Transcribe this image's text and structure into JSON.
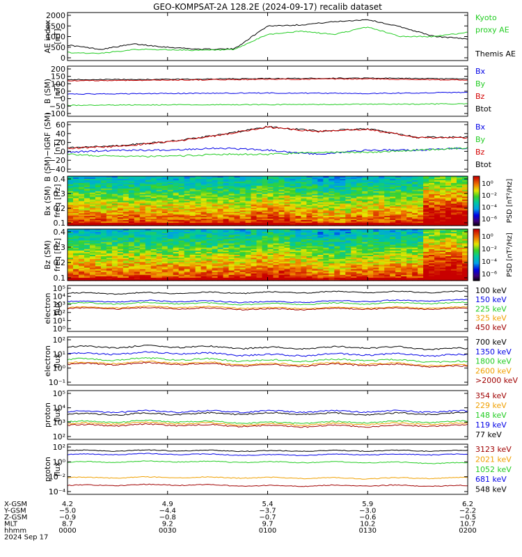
{
  "title": "GEO-KOMPSAT-2A 128.2E (2024-09-17) recalib dataset",
  "colors": {
    "black": "#000000",
    "red": "#d40000",
    "green": "#22cc22",
    "blue": "#0000e6",
    "orange": "#f0a000",
    "darkred": "#a00000"
  },
  "panels": [
    {
      "id": "ae",
      "ylabel": [
        "AE index",
        "[nT]"
      ],
      "ticks": [
        "2000",
        "1500",
        "1000",
        "500",
        "0"
      ],
      "legend": [
        {
          "text": "Kyoto",
          "color": "#22cc22"
        },
        {
          "text": "proxy AE",
          "color": "#22cc22"
        },
        {
          "text": "",
          "color": "#000000"
        },
        {
          "text": "Themis AE",
          "color": "#000000"
        }
      ]
    },
    {
      "id": "b",
      "ylabel": [
        "B (SM)",
        "[nT]"
      ],
      "ticks": [
        "200",
        "150",
        "100",
        "50",
        "0",
        "−50",
        "−100"
      ],
      "legend": [
        {
          "text": "Bx",
          "color": "#0000e6"
        },
        {
          "text": "By",
          "color": "#22cc22"
        },
        {
          "text": "Bz",
          "color": "#d40000"
        },
        {
          "text": "Btot",
          "color": "#000000"
        }
      ]
    },
    {
      "id": "db",
      "ylabel": [
        "B (SM)−IGRF (SM)",
        "[nT]"
      ],
      "ticks": [
        "60",
        "40",
        "20",
        "0",
        "−20",
        "−40"
      ],
      "legend": [
        {
          "text": "Bx",
          "color": "#0000e6"
        },
        {
          "text": "By",
          "color": "#22cc22"
        },
        {
          "text": "Bz",
          "color": "#d40000"
        },
        {
          "text": "Btot",
          "color": "#000000"
        }
      ]
    },
    {
      "id": "bxspec",
      "ylabel": [
        "Bx (SM)",
        "freq [Hz]"
      ],
      "ticks": [
        "0.4",
        "0.3",
        "0.2",
        "0.1"
      ],
      "colorbar": {
        "label": "PSD [nT²/Hz]",
        "ticks": [
          "10⁰",
          "10⁻²",
          "10⁻⁴",
          "10⁻⁶"
        ]
      }
    },
    {
      "id": "bzspec",
      "ylabel": [
        "Bz (SM)",
        "freq [Hz]"
      ],
      "ticks": [
        "0.4",
        "0.3",
        "0.2",
        "0.1"
      ],
      "colorbar": {
        "label": "PSD [nT²/Hz]",
        "ticks": [
          "10⁰",
          "10⁻²",
          "10⁻⁴",
          "10⁻⁶"
        ]
      }
    },
    {
      "id": "elow",
      "ylabel": [
        "electron",
        "flux"
      ],
      "ticks": [
        "10⁵",
        "10⁴",
        "10³",
        "10²",
        "10¹",
        "10⁰"
      ],
      "legend": [
        {
          "text": "100 keV",
          "color": "#000000"
        },
        {
          "text": "150 keV",
          "color": "#0000e6"
        },
        {
          "text": "225 keV",
          "color": "#22cc22"
        },
        {
          "text": "325 keV",
          "color": "#f0a000"
        },
        {
          "text": "450 keV",
          "color": "#a00000"
        }
      ]
    },
    {
      "id": "ehigh",
      "ylabel": [
        "electron",
        "flux"
      ],
      "ticks": [
        "10²",
        "10¹",
        "10⁰",
        "10⁻¹"
      ],
      "legend": [
        {
          "text": "700 keV",
          "color": "#000000"
        },
        {
          "text": "1350 keV",
          "color": "#0000e6"
        },
        {
          "text": "1800 keV",
          "color": "#22cc22"
        },
        {
          "text": "2600 keV",
          "color": "#f0a000"
        },
        {
          "text": ">2000 keV",
          "color": "#a00000"
        }
      ]
    },
    {
      "id": "plow",
      "ylabel": [
        "proton",
        "flux"
      ],
      "ticks": [
        "10⁵",
        "10⁴",
        "10³",
        "10²"
      ],
      "legend": [
        {
          "text": "354 keV",
          "color": "#a00000"
        },
        {
          "text": "229 keV",
          "color": "#f0a000"
        },
        {
          "text": "148 keV",
          "color": "#22cc22"
        },
        {
          "text": "119 keV",
          "color": "#0000e6"
        },
        {
          "text": "77 keV",
          "color": "#000000"
        }
      ]
    },
    {
      "id": "phigh",
      "ylabel": [
        "proton",
        "flux"
      ],
      "ticks": [
        "10²",
        "10⁰",
        "10⁻²",
        "10⁻⁴"
      ],
      "legend": [
        {
          "text": "3123 keV",
          "color": "#a00000"
        },
        {
          "text": "2021 keV",
          "color": "#f0a000"
        },
        {
          "text": "1052 keV",
          "color": "#22cc22"
        },
        {
          "text": "681 keV",
          "color": "#0000e6"
        },
        {
          "text": "548 keV",
          "color": "#000000"
        }
      ]
    }
  ],
  "xaxis": {
    "row_labels": [
      "X-GSM",
      "Y-GSM",
      "Z-GSM",
      "MLT",
      "hhmm"
    ],
    "columns": [
      [
        "4.2",
        "−5.0",
        "−0.9",
        "8.7",
        "0000"
      ],
      [
        "4.9",
        "−4.4",
        "−0.8",
        "9.2",
        "0030"
      ],
      [
        "5.4",
        "−3.7",
        "−0.7",
        "9.7",
        "0100"
      ],
      [
        "5.9",
        "−3.0",
        "−0.6",
        "10.2",
        "0130"
      ],
      [
        "6.2",
        "−2.2",
        "−0.5",
        "10.7",
        "0200"
      ]
    ],
    "date": "2024 Sep 17"
  },
  "chart_data": [
    {
      "type": "line",
      "x": [
        0,
        10,
        20,
        30,
        40,
        50,
        60,
        70,
        80,
        90,
        100,
        110,
        120
      ],
      "xlabel": "hhmm",
      "ylim": [
        0,
        2000
      ],
      "series": [
        {
          "name": "Themis AE",
          "values": [
            600,
            400,
            650,
            500,
            400,
            420,
            1500,
            1550,
            1700,
            1800,
            1450,
            1000,
            900
          ]
        },
        {
          "name": "Kyoto proxy AE",
          "values": [
            250,
            200,
            400,
            380,
            350,
            380,
            1100,
            1250,
            1100,
            1450,
            1000,
            1000,
            1200
          ]
        }
      ]
    },
    {
      "type": "line",
      "x": [
        0,
        30,
        60,
        90,
        120
      ],
      "ylim": [
        -100,
        200
      ],
      "series": [
        {
          "name": "Btot",
          "values": [
            128,
            130,
            135,
            138,
            132
          ]
        },
        {
          "name": "Bz",
          "values": [
            120,
            125,
            130,
            133,
            125
          ]
        },
        {
          "name": "Bx",
          "values": [
            30,
            35,
            38,
            35,
            42
          ]
        },
        {
          "name": "By",
          "values": [
            -45,
            -42,
            -40,
            -38,
            -35
          ]
        }
      ]
    },
    {
      "type": "line",
      "x": [
        0,
        20,
        40,
        60,
        80,
        90,
        100,
        110,
        120
      ],
      "ylim": [
        -45,
        60
      ],
      "series": [
        {
          "name": "Btot",
          "values": [
            5,
            10,
            20,
            35,
            55,
            45,
            50,
            30,
            30
          ]
        },
        {
          "name": "Bz",
          "values": [
            4,
            9,
            19,
            34,
            54,
            44,
            49,
            29,
            29
          ]
        },
        {
          "name": "Bx",
          "values": [
            -5,
            0,
            0,
            5,
            0,
            -10,
            0,
            0,
            5
          ]
        },
        {
          "name": "By",
          "values": [
            -10,
            -15,
            -15,
            -10,
            -10,
            -5,
            -5,
            0,
            5
          ]
        }
      ]
    },
    {
      "type": "heatmap",
      "xlabel": "hhmm",
      "ylabel": "freq [Hz]",
      "ylim": [
        0,
        0.5
      ],
      "zlabel": "PSD [nT²/Hz]"
    },
    {
      "type": "heatmap",
      "xlabel": "hhmm",
      "ylabel": "freq [Hz]",
      "ylim": [
        0,
        0.5
      ],
      "zlabel": "PSD [nT²/Hz]"
    },
    {
      "type": "line",
      "ylog": true,
      "ylim": [
        1,
        100000
      ],
      "series": [
        {
          "name": "100 keV",
          "values": [
            20000,
            22000,
            25000,
            30000,
            30000
          ]
        },
        {
          "name": "150 keV",
          "values": [
            2000,
            2500,
            1800,
            2500,
            3000
          ]
        },
        {
          "name": "225 keV",
          "values": [
            1200,
            1400,
            1000,
            1300,
            1500
          ]
        },
        {
          "name": "325 keV",
          "values": [
            400,
            500,
            350,
            400,
            400
          ]
        },
        {
          "name": "450 keV",
          "values": [
            300,
            350,
            250,
            300,
            300
          ]
        }
      ]
    },
    {
      "type": "line",
      "ylog": true,
      "ylim": [
        0.05,
        300
      ],
      "series": [
        {
          "name": "700 keV",
          "values": [
            60,
            70,
            50,
            60,
            40
          ]
        },
        {
          "name": "1350 keV",
          "values": [
            15,
            20,
            12,
            15,
            12
          ]
        },
        {
          "name": "1800 keV",
          "values": [
            5,
            6,
            4,
            5,
            3
          ]
        },
        {
          "name": "2600 keV",
          "values": [
            2.5,
            3,
            2,
            2.5,
            1.5
          ]
        },
        {
          "name": ">2000 keV",
          "values": [
            2,
            2.5,
            1.5,
            2,
            1.2
          ]
        }
      ]
    },
    {
      "type": "line",
      "ylog": true,
      "ylim": [
        50,
        1000000
      ],
      "series": [
        {
          "name": "77 keV",
          "values": [
            8000,
            9000,
            10000,
            9000,
            10000
          ]
        },
        {
          "name": "119 keV",
          "values": [
            15000,
            16000,
            15000,
            16000,
            15000
          ]
        },
        {
          "name": "148 keV",
          "values": [
            1500,
            1800,
            1200,
            1500,
            1600
          ]
        },
        {
          "name": "229 keV",
          "values": [
            1000,
            1200,
            800,
            1000,
            1000
          ]
        },
        {
          "name": "354 keV",
          "values": [
            700,
            800,
            600,
            600,
            700
          ]
        }
      ]
    },
    {
      "type": "line",
      "ylog": true,
      "ylim": [
        5e-05,
        1000
      ],
      "series": [
        {
          "name": "548 keV",
          "values": [
            200,
            220,
            180,
            200,
            200
          ]
        },
        {
          "name": "681 keV",
          "values": [
            50,
            60,
            40,
            50,
            50
          ]
        },
        {
          "name": "1052 keV",
          "values": [
            3,
            4,
            3,
            3,
            2
          ]
        },
        {
          "name": "2021 keV",
          "values": [
            0.01,
            0.012,
            0.01,
            0.008,
            0.01
          ]
        },
        {
          "name": "3123 keV",
          "values": [
            0.0006,
            0.0008,
            0.0005,
            0.0006,
            0.0005
          ]
        }
      ]
    }
  ]
}
